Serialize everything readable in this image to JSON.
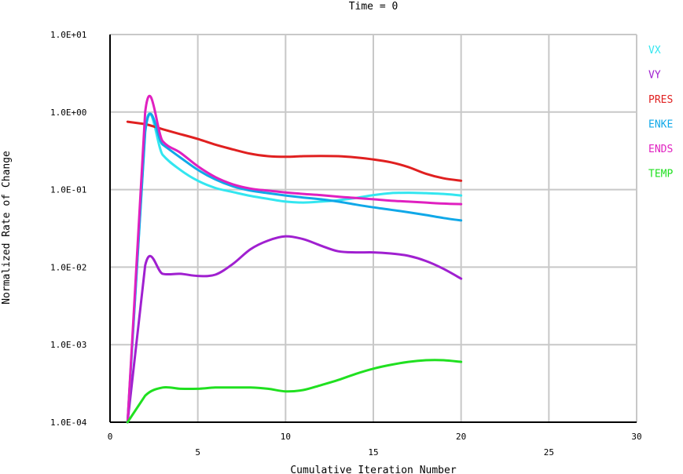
{
  "chart_data": {
    "type": "line",
    "title": "Time = 0",
    "xlabel": "Cumulative Iteration Number",
    "ylabel": "Normalized Rate of Change",
    "xlim": [
      0,
      30
    ],
    "ylim": [
      0.0001,
      10
    ],
    "yscale": "log",
    "grid": true,
    "legend_position": "right",
    "x_ticks": [
      {
        "value": 0,
        "label": "0"
      },
      {
        "value": 5,
        "label": "5"
      },
      {
        "value": 10,
        "label": "10"
      },
      {
        "value": 15,
        "label": "15"
      },
      {
        "value": 20,
        "label": "20"
      },
      {
        "value": 25,
        "label": "25"
      },
      {
        "value": 30,
        "label": "30"
      }
    ],
    "y_ticks": [
      {
        "value": 10,
        "label": "1.0E+01"
      },
      {
        "value": 1,
        "label": "1.0E+00"
      },
      {
        "value": 0.1,
        "label": "1.0E-01"
      },
      {
        "value": 0.01,
        "label": "1.0E-02"
      },
      {
        "value": 0.001,
        "label": "1.0E-03"
      },
      {
        "value": 0.0001,
        "label": "1.0E-04"
      }
    ],
    "x": [
      1,
      2,
      3,
      4,
      5,
      6,
      7,
      8,
      9,
      10,
      11,
      12,
      13,
      14,
      15,
      16,
      17,
      18,
      19,
      20
    ],
    "series": [
      {
        "name": "VX",
        "color": "#33e6f0",
        "values": [
          0.0001,
          0.6,
          0.28,
          0.18,
          0.13,
          0.105,
          0.093,
          0.083,
          0.076,
          0.07,
          0.068,
          0.07,
          0.073,
          0.078,
          0.085,
          0.09,
          0.091,
          0.09,
          0.088,
          0.084
        ]
      },
      {
        "name": "VY",
        "color": "#a020d0",
        "values": [
          0.0001,
          0.0105,
          0.0082,
          0.0082,
          0.0077,
          0.008,
          0.011,
          0.017,
          0.022,
          0.025,
          0.023,
          0.019,
          0.016,
          0.0155,
          0.0155,
          0.015,
          0.014,
          0.012,
          0.0095,
          0.0071
        ]
      },
      {
        "name": "PRES",
        "color": "#e02020",
        "values": [
          0.75,
          0.7,
          0.6,
          0.52,
          0.45,
          0.38,
          0.33,
          0.29,
          0.27,
          0.265,
          0.27,
          0.272,
          0.27,
          0.26,
          0.245,
          0.225,
          0.195,
          0.16,
          0.14,
          0.13
        ]
      },
      {
        "name": "ENKE",
        "color": "#10a8e8",
        "values": [
          0.0001,
          0.55,
          0.38,
          0.26,
          0.18,
          0.135,
          0.11,
          0.097,
          0.09,
          0.084,
          0.079,
          0.075,
          0.07,
          0.064,
          0.059,
          0.055,
          0.051,
          0.047,
          0.043,
          0.04
        ]
      },
      {
        "name": "ENDS",
        "color": "#e020c0",
        "values": [
          0.0001,
          1.0,
          0.42,
          0.3,
          0.2,
          0.145,
          0.117,
          0.103,
          0.097,
          0.092,
          0.088,
          0.085,
          0.081,
          0.078,
          0.075,
          0.072,
          0.07,
          0.068,
          0.066,
          0.065
        ]
      },
      {
        "name": "TEMP",
        "color": "#20e020",
        "values": [
          0.0001,
          0.00022,
          0.00028,
          0.00027,
          0.00027,
          0.00028,
          0.00028,
          0.00028,
          0.00027,
          0.00025,
          0.00026,
          0.0003,
          0.00035,
          0.00042,
          0.00049,
          0.00055,
          0.0006,
          0.00063,
          0.00063,
          0.0006
        ]
      }
    ]
  }
}
